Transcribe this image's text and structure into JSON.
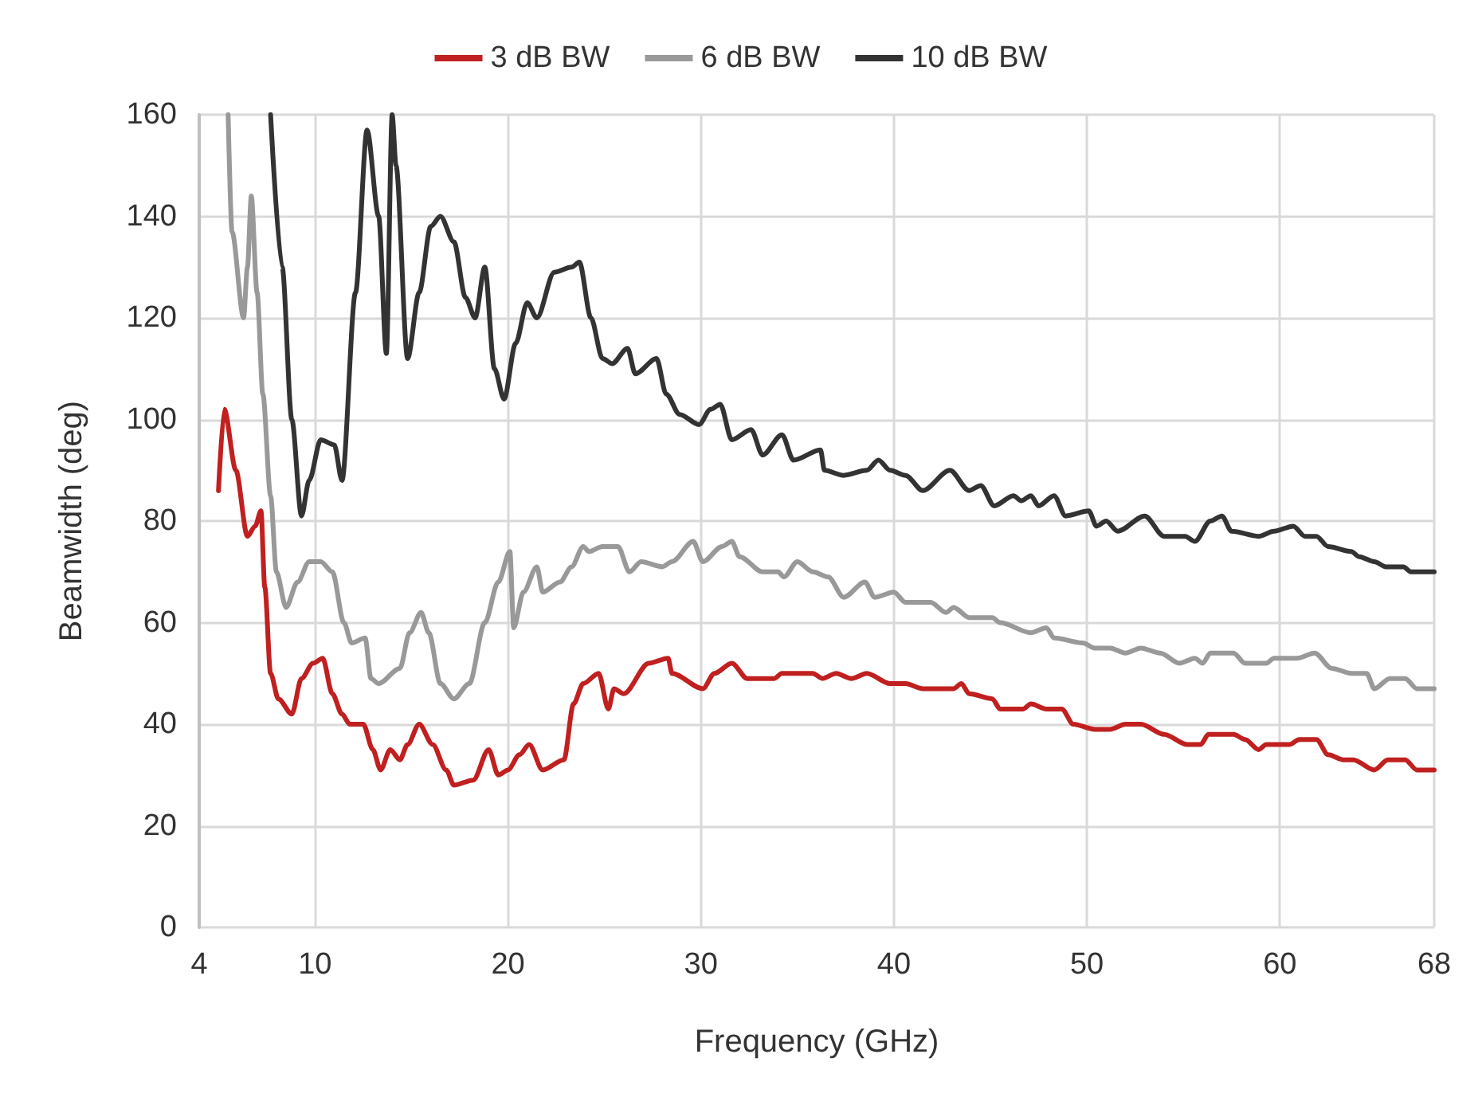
{
  "chart_data": {
    "type": "line",
    "xlabel": "Frequency (GHz)",
    "ylabel": "Beamwidth (deg)",
    "xlim": [
      4,
      68
    ],
    "xticks": [
      4,
      10,
      20,
      30,
      40,
      50,
      60,
      68
    ],
    "ylim": [
      0,
      160
    ],
    "yticks": [
      0,
      20,
      40,
      60,
      80,
      100,
      120,
      140,
      160
    ],
    "grid": true,
    "legend": "top",
    "marker": "none",
    "line_style": "solid",
    "series": [
      {
        "name": "3 dB BW",
        "color": "#c0201f",
        "x": [
          5.0,
          5.3,
          5.9,
          6.5,
          6.9,
          7.2,
          7.4,
          7.7,
          8.1,
          8.8,
          9.3,
          9.9,
          10.4,
          10.9,
          11.4,
          11.8,
          12.5,
          13.0,
          13.4,
          13.9,
          14.4,
          14.8,
          15.4,
          16.1,
          16.8,
          17.2,
          18.2,
          19.0,
          19.5,
          20.0,
          20.6,
          21.1,
          21.8,
          22.9,
          23.4,
          23.9,
          24.7,
          25.2,
          25.5,
          26.0,
          27.3,
          28.3,
          28.5,
          30.1,
          30.7,
          31.6,
          32.4,
          33.8,
          34.2,
          35.8,
          36.3,
          37.0,
          37.8,
          38.6,
          39.8,
          40.6,
          41.5,
          43.1,
          43.5,
          43.9,
          45.1,
          45.5,
          46.7,
          47.1,
          47.9,
          48.7,
          49.3,
          50.4,
          51.2,
          52.0,
          52.8,
          54.0,
          55.2,
          55.9,
          56.3,
          57.6,
          58.2,
          58.9,
          59.3,
          60.5,
          61.0,
          61.9,
          62.5,
          63.3,
          63.8,
          64.9,
          65.6,
          66.5,
          67.1,
          68
        ],
        "values": [
          86,
          102,
          90,
          77,
          79,
          82,
          67,
          50,
          45,
          42,
          49,
          52,
          53,
          46,
          42,
          40,
          40,
          35,
          31,
          35,
          33,
          36,
          40,
          36,
          31,
          28,
          29,
          35,
          30,
          31,
          34,
          36,
          31,
          33,
          44,
          48,
          50,
          43,
          47,
          46,
          52,
          53,
          50,
          47,
          50,
          52,
          49,
          49,
          50,
          50,
          49,
          50,
          49,
          50,
          48,
          48,
          47,
          47,
          48,
          46,
          45,
          43,
          43,
          44,
          43,
          43,
          40,
          39,
          39,
          40,
          40,
          38,
          36,
          36,
          38,
          38,
          37,
          35,
          36,
          36,
          37,
          37,
          34,
          33,
          33,
          31,
          33,
          33,
          31,
          31
        ]
      },
      {
        "name": "6 dB BW",
        "color": "#999999",
        "x": [
          5.5,
          5.7,
          6.3,
          6.5,
          6.7,
          7.0,
          7.3,
          7.7,
          8.0,
          8.5,
          9.1,
          9.7,
          10.3,
          10.9,
          11.5,
          11.9,
          12.6,
          12.9,
          13.3,
          14.4,
          14.9,
          15.5,
          15.9,
          16.5,
          17.2,
          18.0,
          18.8,
          19.5,
          20.1,
          20.3,
          20.8,
          21.5,
          21.8,
          22.7,
          23.3,
          23.9,
          24.2,
          24.9,
          25.7,
          26.3,
          26.9,
          28.0,
          28.5,
          29.6,
          30.1,
          31.1,
          31.6,
          32.0,
          33.2,
          34.0,
          34.3,
          35.0,
          35.8,
          36.6,
          37.4,
          38.5,
          39.0,
          40.0,
          40.6,
          41.9,
          42.7,
          43.1,
          43.9,
          45.1,
          45.5,
          47.1,
          47.9,
          48.3,
          49.8,
          50.4,
          51.2,
          52.0,
          52.8,
          53.8,
          54.8,
          55.6,
          56.0,
          56.4,
          57.6,
          58.2,
          59.3,
          59.7,
          60.9,
          61.8,
          62.7,
          63.7,
          64.5,
          64.9,
          65.7,
          66.5,
          67.1,
          68
        ],
        "values": [
          160,
          137,
          120,
          130,
          144,
          125,
          105,
          85,
          70,
          63,
          68,
          72,
          72,
          70,
          60,
          56,
          57,
          49,
          48,
          51,
          58,
          62,
          58,
          48,
          45,
          48,
          60,
          68,
          74,
          59,
          66,
          71,
          66,
          68,
          71,
          75,
          74,
          75,
          75,
          70,
          72,
          71,
          72,
          76,
          72,
          75,
          76,
          73,
          70,
          70,
          69,
          72,
          70,
          69,
          65,
          68,
          65,
          66,
          64,
          64,
          62,
          63,
          61,
          61,
          60,
          58,
          59,
          57,
          56,
          55,
          55,
          54,
          55,
          54,
          52,
          53,
          52,
          54,
          54,
          52,
          52,
          53,
          53,
          54,
          51,
          50,
          50,
          47,
          49,
          49,
          47,
          47
        ]
      },
      {
        "name": "10 dB BW",
        "color": "#333333",
        "x": [
          7.7,
          8.3,
          8.8,
          9.3,
          9.7,
          10.3,
          11.0,
          11.4,
          12.1,
          12.7,
          13.3,
          13.7,
          14.0,
          14.2,
          14.8,
          15.4,
          16.0,
          16.5,
          17.2,
          17.8,
          18.3,
          18.8,
          19.3,
          19.8,
          20.4,
          21.0,
          21.5,
          22.4,
          23.3,
          23.7,
          24.3,
          24.9,
          25.4,
          26.2,
          26.6,
          27.7,
          28.2,
          28.9,
          29.9,
          30.5,
          31.0,
          31.6,
          32.6,
          33.2,
          34.2,
          34.8,
          36.2,
          36.4,
          37.4,
          38.6,
          39.2,
          39.8,
          40.6,
          41.5,
          42.9,
          43.9,
          44.5,
          45.2,
          46.2,
          46.6,
          47.1,
          47.5,
          48.3,
          48.9,
          50.1,
          50.5,
          51.0,
          51.6,
          53.0,
          54.0,
          55.1,
          55.6,
          56.4,
          57.0,
          57.5,
          58.9,
          59.7,
          60.7,
          61.3,
          61.9,
          62.5,
          63.7,
          64.1,
          64.9,
          65.5,
          66.4,
          66.8,
          68
        ],
        "values": [
          160,
          130,
          100,
          81,
          88,
          96,
          95,
          88,
          125,
          157,
          140,
          113,
          160,
          150,
          112,
          125,
          138,
          140,
          135,
          124,
          120,
          130,
          110,
          104,
          115,
          123,
          120,
          129,
          130,
          131,
          120,
          112,
          111,
          114,
          109,
          112,
          105,
          101,
          99,
          102,
          103,
          96,
          98,
          93,
          97,
          92,
          94,
          90,
          89,
          90,
          92,
          90,
          89,
          86,
          90,
          86,
          87,
          83,
          85,
          84,
          85,
          83,
          85,
          81,
          82,
          79,
          80,
          78,
          81,
          77,
          77,
          76,
          80,
          81,
          78,
          77,
          78,
          79,
          77,
          77,
          75,
          74,
          73,
          72,
          71,
          71,
          70,
          70
        ]
      }
    ]
  }
}
